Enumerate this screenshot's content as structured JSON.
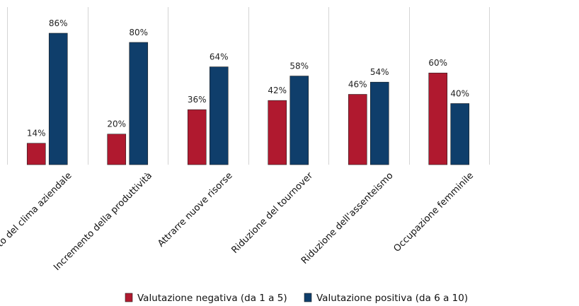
{
  "chart_data": {
    "type": "bar",
    "title": "",
    "xlabel": "",
    "ylabel": "",
    "ylim": [
      0,
      100
    ],
    "grid": "vertical category separators",
    "legend_position": "bottom",
    "categories": [
      "Miglioramento del clima aziendale",
      "Incremento della produttività",
      "Attrarre nuove risorse",
      "Riduzione del tournover",
      "Riduzione dell'assenteismo",
      "Occupazione femminile"
    ],
    "series": [
      {
        "name": "Valutazione negativa (da 1 a 5)",
        "color": "#b0192f",
        "values": [
          14,
          20,
          36,
          42,
          46,
          60
        ],
        "labels": [
          "14%",
          "20%",
          "36%",
          "42%",
          "46%",
          "60%"
        ]
      },
      {
        "name": "Valutazione positiva (da 6 a 10)",
        "color": "#0f3e6b",
        "values": [
          86,
          80,
          64,
          58,
          54,
          40
        ],
        "labels": [
          "86%",
          "80%",
          "64%",
          "58%",
          "54%",
          "40%"
        ]
      }
    ]
  }
}
